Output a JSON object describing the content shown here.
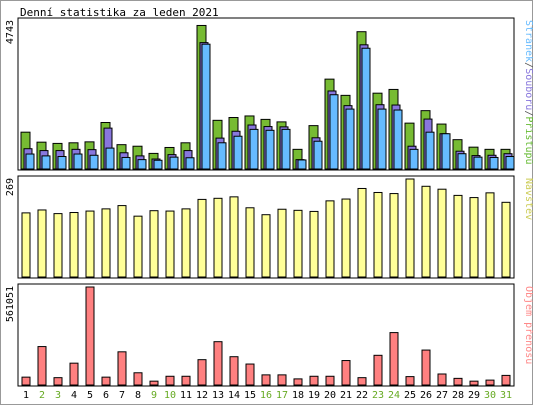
{
  "chart_data": {
    "type": "bar",
    "title": "Denní statistika za leden 2021",
    "categories": [
      "1",
      "2",
      "3",
      "4",
      "5",
      "6",
      "7",
      "8",
      "9",
      "10",
      "11",
      "12",
      "13",
      "14",
      "15",
      "16",
      "17",
      "18",
      "19",
      "20",
      "21",
      "22",
      "23",
      "24",
      "25",
      "26",
      "27",
      "28",
      "29",
      "30",
      "31"
    ],
    "weekend_days": [
      "2",
      "3",
      "9",
      "10",
      "16",
      "17",
      "23",
      "24",
      "30",
      "31"
    ],
    "panels": [
      {
        "id": "traffic",
        "ymax_label": "4743",
        "ymax": 4743,
        "legend_parts": [
          {
            "text": "Stránek",
            "color": "#66bbff"
          },
          {
            "text": "/",
            "color": "#555555"
          },
          {
            "text": "Souborů",
            "color": "#8877dd"
          },
          {
            "text": "/",
            "color": "#555555"
          },
          {
            "text": "Přístupů",
            "color": "#66bb33"
          }
        ],
        "series": [
          {
            "name": "Přístupů",
            "color": "#77bb33",
            "values": [
              1180,
              860,
              820,
              840,
              870,
              1490,
              780,
              730,
              500,
              690,
              840,
              4600,
              1560,
              1650,
              1700,
              1590,
              1510,
              630,
              1390,
              2880,
              2360,
              4400,
              2430,
              2550,
              1470,
              1870,
              1440,
              940,
              700,
              630,
              630
            ]
          },
          {
            "name": "Souborů",
            "color": "#8877dd",
            "values": [
              650,
              590,
              590,
              630,
              620,
              1310,
              520,
              420,
              320,
              460,
              590,
              4050,
              990,
              1210,
              1410,
              1360,
              1350,
              300,
              1000,
              2500,
              2030,
              3980,
              2060,
              2050,
              730,
              1600,
              1130,
              570,
              430,
              440,
              490
            ]
          },
          {
            "name": "Stránek",
            "color": "#66bbff",
            "values": [
              480,
              420,
              400,
              480,
              440,
              670,
              370,
              300,
              280,
              380,
              360,
              4000,
              840,
              1050,
              1270,
              1240,
              1270,
              290,
              890,
              2380,
              1920,
              3870,
              1920,
              1890,
              630,
              1180,
              1130,
              490,
              380,
              370,
              400
            ]
          }
        ]
      },
      {
        "id": "visits",
        "ymax_label": "269",
        "ymax": 269,
        "legend_parts": [
          {
            "text": "Návštěv",
            "color": "#cccc55"
          }
        ],
        "series": [
          {
            "name": "Návštěv",
            "color": "#ffff99",
            "values": [
              176,
              184,
              174,
              177,
              181,
              187,
              196,
              167,
              182,
              181,
              187,
              213,
              216,
              220,
              190,
              171,
              186,
              183,
              180,
              209,
              214,
              243,
              232,
              229,
              269,
              249,
              241,
              224,
              218,
              231,
              205
            ]
          }
        ]
      },
      {
        "id": "volume",
        "ymax_label": "561051",
        "ymax": 561051,
        "legend_parts": [
          {
            "text": "Objem přenosu",
            "color": "#ff8888"
          }
        ],
        "series": [
          {
            "name": "Objem přenosu",
            "color": "#ff8080",
            "values": [
              45000,
              220000,
              42000,
              125000,
              561051,
              45000,
              190000,
              70000,
              22000,
              50000,
              50000,
              145000,
              248000,
              162000,
              120000,
              58000,
              58000,
              35000,
              50000,
              50000,
              140000,
              42000,
              170000,
              300000,
              48000,
              200000,
              63000,
              38000,
              22000,
              28000,
              55000
            ]
          }
        ]
      }
    ]
  }
}
